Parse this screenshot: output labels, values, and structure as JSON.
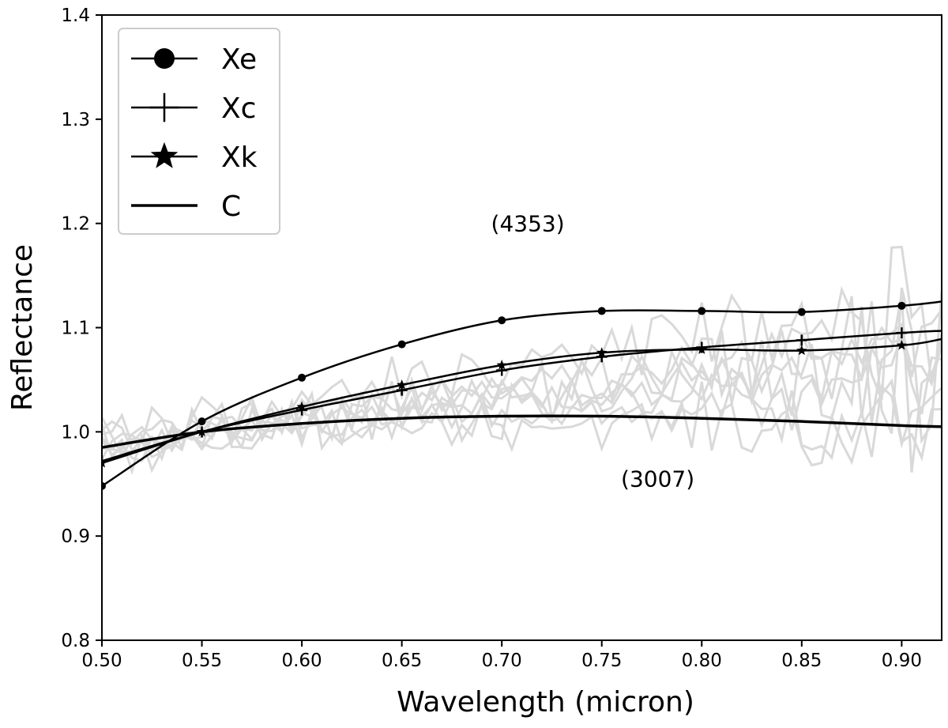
{
  "chart_data": {
    "type": "line",
    "title": "",
    "xlabel": "Wavelength (micron)",
    "ylabel": "Reflectance",
    "xlim": [
      0.5,
      0.92
    ],
    "ylim": [
      0.8,
      1.4
    ],
    "xticks": [
      "0.50",
      "0.55",
      "0.60",
      "0.65",
      "0.70",
      "0.75",
      "0.80",
      "0.85",
      "0.90"
    ],
    "yticks": [
      "0.8",
      "0.9",
      "1.0",
      "1.1",
      "1.2",
      "1.3",
      "1.4"
    ],
    "grid": false,
    "legend_position": "top-left",
    "series": [
      {
        "name": "Xe",
        "marker": "circle",
        "x": [
          0.5,
          0.55,
          0.6,
          0.65,
          0.7,
          0.75,
          0.8,
          0.85,
          0.9,
          0.92
        ],
        "values": [
          0.948,
          1.01,
          1.052,
          1.084,
          1.107,
          1.116,
          1.116,
          1.115,
          1.121,
          1.125
        ],
        "marker_x": [
          0.5,
          0.55,
          0.6,
          0.65,
          0.7,
          0.75,
          0.8,
          0.85,
          0.9
        ]
      },
      {
        "name": "Xc",
        "marker": "plus",
        "x": [
          0.5,
          0.55,
          0.6,
          0.65,
          0.7,
          0.75,
          0.8,
          0.85,
          0.9,
          0.92
        ],
        "values": [
          0.972,
          1.0,
          1.021,
          1.04,
          1.059,
          1.072,
          1.081,
          1.088,
          1.095,
          1.097
        ],
        "marker_x": [
          0.5,
          0.55,
          0.6,
          0.65,
          0.7,
          0.75,
          0.8,
          0.85,
          0.9
        ]
      },
      {
        "name": "Xk",
        "marker": "star",
        "x": [
          0.5,
          0.55,
          0.6,
          0.65,
          0.7,
          0.75,
          0.8,
          0.85,
          0.9,
          0.92
        ],
        "values": [
          0.97,
          1.0,
          1.024,
          1.045,
          1.064,
          1.076,
          1.079,
          1.078,
          1.083,
          1.089
        ],
        "marker_x": [
          0.5,
          0.55,
          0.6,
          0.65,
          0.7,
          0.75,
          0.8,
          0.85,
          0.9
        ]
      },
      {
        "name": "C",
        "marker": "none",
        "x": [
          0.5,
          0.55,
          0.6,
          0.65,
          0.7,
          0.75,
          0.8,
          0.85,
          0.9,
          0.92
        ],
        "values": [
          0.985,
          1.0,
          1.008,
          1.013,
          1.015,
          1.015,
          1.013,
          1.01,
          1.006,
          1.005
        ],
        "marker_x": []
      }
    ],
    "background_spectra": {
      "color": "#d9d9d9",
      "count": 8,
      "x_start": 0.5,
      "x_end": 0.92,
      "samples": 85
    },
    "annotations": [
      {
        "text": "(4353)",
        "x": 0.713,
        "y": 1.2
      },
      {
        "text": "(3007)",
        "x": 0.778,
        "y": 0.955
      }
    ]
  }
}
